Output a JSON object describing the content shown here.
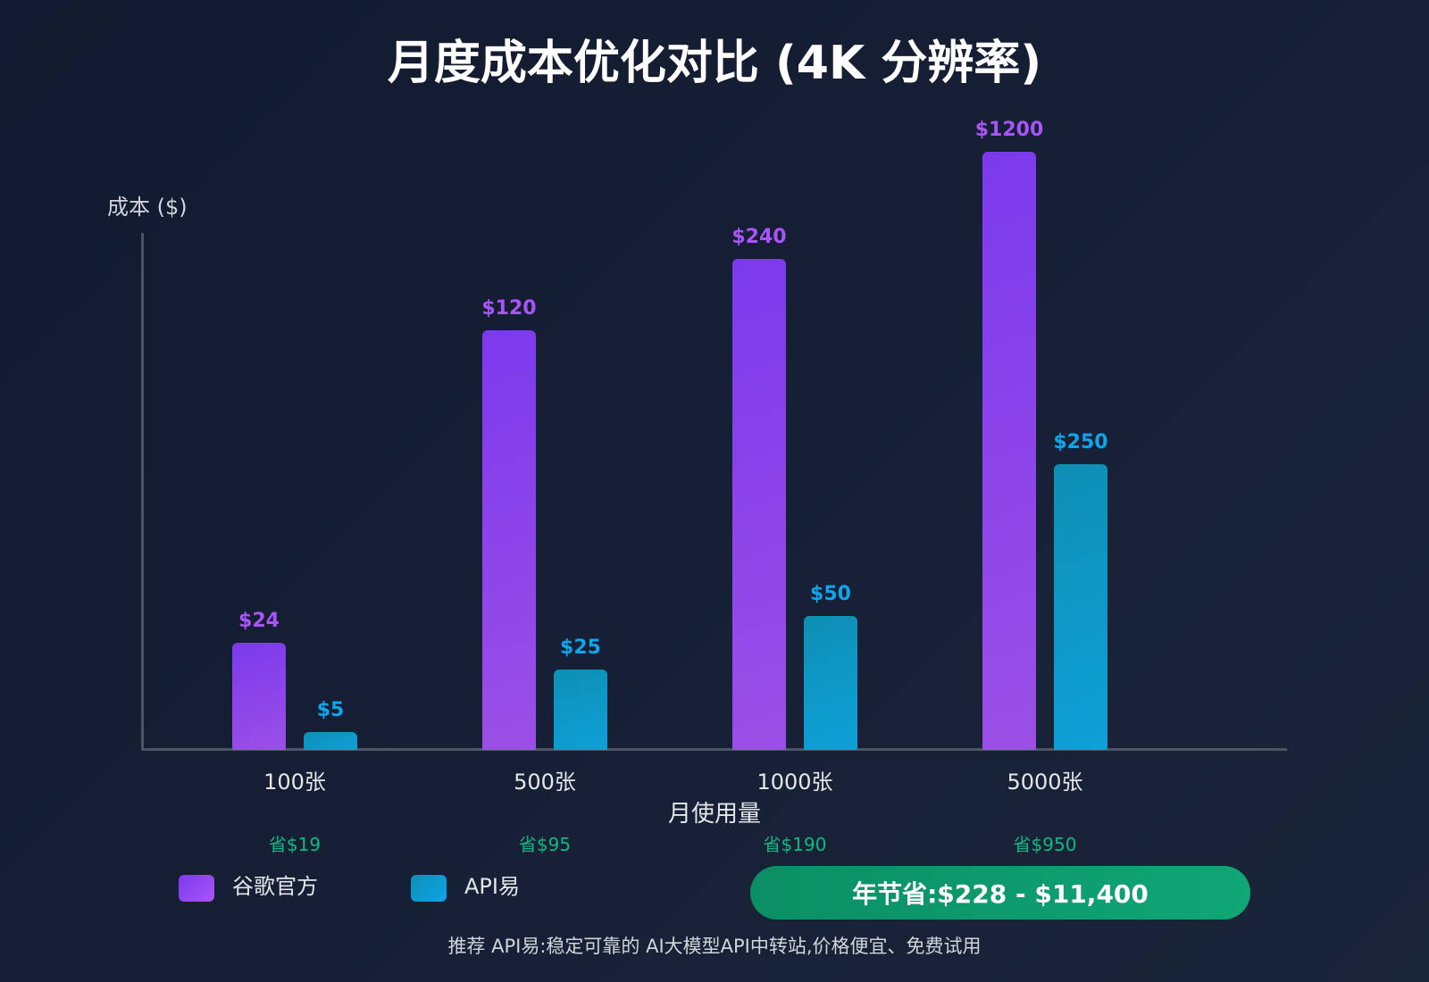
{
  "chart_data": {
    "type": "bar",
    "title": "月度成本优化对比 (4K 分辨率)",
    "ylabel": "成本 ($)",
    "xlabel": "月使用量",
    "categories": [
      "100张",
      "500张",
      "1000张",
      "5000张"
    ],
    "series": [
      {
        "name": "谷歌官方",
        "values": [
          24,
          120,
          240,
          1200
        ],
        "labels": [
          "$24",
          "$120",
          "$240",
          "$1200"
        ],
        "color": "#8b45e8"
      },
      {
        "name": "API易",
        "values": [
          5,
          25,
          50,
          250
        ],
        "labels": [
          "$5",
          "$25",
          "$50",
          "$250"
        ],
        "color": "#0ea5e9"
      }
    ],
    "savings": [
      "省$19",
      "省$95",
      "省$190",
      "省$950"
    ],
    "grid": false,
    "legend_placement": "bottom-left"
  },
  "annual_savings": "年节省:$228 - $11,400",
  "footer": "推荐 API易:稳定可靠的 AI大模型API中转站,价格便宜、免费试用",
  "colors": {
    "savings": "#10b981",
    "pill": "#0d9b6c",
    "purple_label": "#a855f7",
    "blue_label": "#0ea5e9"
  }
}
